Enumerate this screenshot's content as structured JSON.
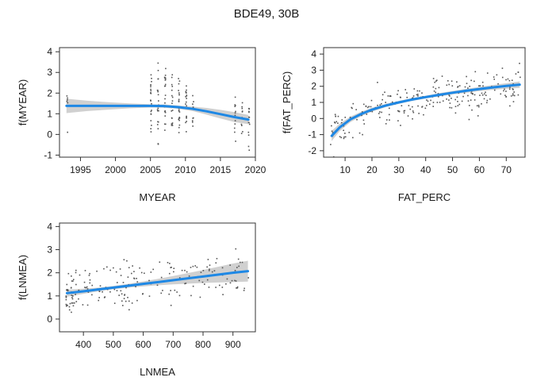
{
  "figure_title": "BDE49, 30B",
  "chart_data": [
    {
      "type": "line",
      "xlabel": "MYEAR",
      "ylabel": "f(MYEAR)",
      "xlim": [
        1992,
        2020
      ],
      "ylim": [
        -1.1,
        4.2
      ],
      "xticks": [
        1995,
        2000,
        2005,
        2010,
        2015,
        2020
      ],
      "yticks": [
        -1,
        0,
        1,
        2,
        3,
        4
      ],
      "grid": false,
      "fit": {
        "x": [
          1993,
          1996,
          1999,
          2002,
          2005,
          2007,
          2009,
          2011,
          2013,
          2015,
          2017,
          2019
        ],
        "y": [
          1.38,
          1.38,
          1.38,
          1.38,
          1.38,
          1.37,
          1.32,
          1.24,
          1.12,
          0.98,
          0.84,
          0.72
        ],
        "lower": [
          1.03,
          1.13,
          1.2,
          1.26,
          1.3,
          1.29,
          1.24,
          1.13,
          0.96,
          0.77,
          0.6,
          0.5
        ],
        "upper": [
          1.73,
          1.63,
          1.56,
          1.5,
          1.46,
          1.45,
          1.4,
          1.35,
          1.28,
          1.19,
          1.08,
          0.94
        ]
      },
      "partial_residuals": {
        "x_groups": [
          1993,
          2005,
          2006,
          2007,
          2008,
          2009,
          2010,
          2011,
          2017,
          2018,
          2019
        ],
        "y_ranges": [
          [
            -0.4,
            2.7
          ],
          [
            -0.2,
            3.0
          ],
          [
            -0.5,
            3.5
          ],
          [
            0.2,
            4.0
          ],
          [
            0.2,
            3.0
          ],
          [
            0.0,
            2.8
          ],
          [
            0.1,
            2.6
          ],
          [
            0.3,
            2.4
          ],
          [
            -0.4,
            1.9
          ],
          [
            0.0,
            1.6
          ],
          [
            -0.8,
            1.3
          ]
        ],
        "counts": [
          6,
          22,
          20,
          24,
          18,
          22,
          18,
          10,
          12,
          10,
          14
        ]
      }
    },
    {
      "type": "line",
      "xlabel": "FAT_PERC",
      "ylabel": "f(FAT_PERC)",
      "xlim": [
        2,
        77
      ],
      "ylim": [
        -2.4,
        4.4
      ],
      "xticks": [
        10,
        20,
        30,
        40,
        50,
        60,
        70
      ],
      "yticks": [
        -2,
        -1,
        0,
        1,
        2,
        3,
        4
      ],
      "grid": false,
      "fit": {
        "x": [
          5,
          8,
          12,
          16,
          20,
          25,
          30,
          35,
          40,
          45,
          50,
          55,
          60,
          65,
          70,
          75
        ],
        "y": [
          -1.08,
          -0.55,
          -0.05,
          0.28,
          0.55,
          0.8,
          1.0,
          1.18,
          1.33,
          1.47,
          1.6,
          1.72,
          1.83,
          1.93,
          2.02,
          2.1
        ],
        "lower": [
          -1.4,
          -0.78,
          -0.22,
          0.14,
          0.43,
          0.7,
          0.91,
          1.09,
          1.24,
          1.37,
          1.49,
          1.6,
          1.7,
          1.78,
          1.85,
          1.9
        ],
        "upper": [
          -0.76,
          -0.32,
          0.12,
          0.42,
          0.67,
          0.9,
          1.09,
          1.27,
          1.42,
          1.57,
          1.71,
          1.84,
          1.96,
          2.08,
          2.19,
          2.3
        ]
      },
      "partial_residuals": {
        "x_range": [
          4,
          75
        ],
        "n": 260,
        "spread": 0.8
      }
    },
    {
      "type": "line",
      "xlabel": "LNMEA",
      "ylabel": "f(LNMEA)",
      "xlim": [
        320,
        975
      ],
      "ylim": [
        -0.55,
        4.15
      ],
      "xticks": [
        400,
        500,
        600,
        700,
        800,
        900
      ],
      "yticks": [
        0,
        1,
        2,
        3,
        4
      ],
      "grid": false,
      "fit": {
        "x": [
          345,
          400,
          450,
          500,
          550,
          600,
          650,
          700,
          750,
          800,
          850,
          900,
          950
        ],
        "y": [
          1.12,
          1.2,
          1.28,
          1.36,
          1.44,
          1.52,
          1.6,
          1.68,
          1.76,
          1.84,
          1.92,
          2.0,
          2.07
        ],
        "lower": [
          0.97,
          1.09,
          1.2,
          1.29,
          1.36,
          1.41,
          1.46,
          1.5,
          1.53,
          1.56,
          1.58,
          1.6,
          1.62
        ],
        "upper": [
          1.27,
          1.31,
          1.36,
          1.43,
          1.52,
          1.63,
          1.74,
          1.86,
          1.99,
          2.12,
          2.26,
          2.4,
          2.52
        ]
      },
      "partial_residuals": {
        "x_range": [
          340,
          950
        ],
        "n": 210,
        "spread": 0.7
      }
    }
  ]
}
